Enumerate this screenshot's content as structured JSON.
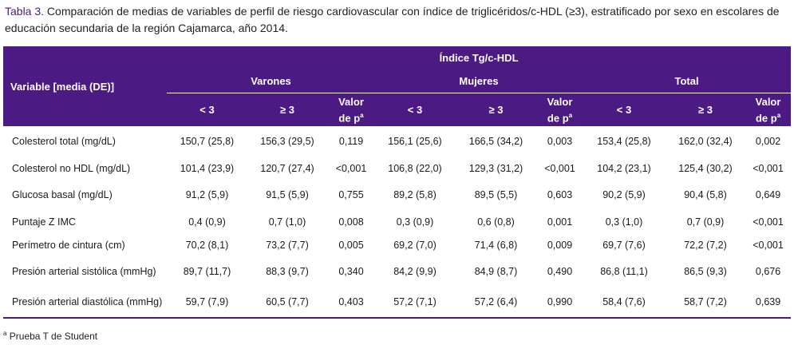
{
  "caption": {
    "label": "Tabla 3.",
    "text": " Comparación de medias de variables de perfil de riesgo cardiovascular con índice de triglicéridos/c-HDL (≥3), estratificado por sexo en escolares de educación secundaria de la región Cajamarca, año 2014."
  },
  "header": {
    "variable": "Variable [media (DE)]",
    "index": "Índice Tg/c-HDL",
    "groups": [
      "Varones",
      "Mujeres",
      "Total"
    ],
    "lt": "< 3",
    "ge": "≥ 3",
    "valor": "Valor",
    "dep": "de p",
    "sup": "a"
  },
  "rows": [
    {
      "variable": "Colesterol total (mg/dL)",
      "values": [
        "150,7 (25,8)",
        "156,3 (29,5)",
        "0,119",
        "156,1 (25,6)",
        "166,5 (34,2)",
        "0,003",
        "153,4 (25,8)",
        "162,0 (32,4)",
        "0,002"
      ]
    },
    {
      "variable": "Colesterol no HDL (mg/dL)",
      "values": [
        "101,4 (23,9)",
        "120,7 (27,4)",
        "<0,001",
        "106,8 (22,0)",
        "129,3 (31,2)",
        "<0,001",
        "104,2 (23,1)",
        "125,4 (30,2)",
        "<0,001"
      ]
    },
    {
      "variable": "Glucosa basal (mg/dL)",
      "values": [
        "91,2 (5,9)",
        "91,5 (5,9)",
        "0,755",
        "89,2 (5,8)",
        "89,5 (5,5)",
        "0,603",
        "90,2 (5,9)",
        "90,4 (5,8)",
        "0,649"
      ]
    },
    {
      "variable": "Puntaje Z IMC",
      "values": [
        "0,4 (0,9)",
        "0,7 (1,0)",
        "0,008",
        "0,3 (0,9)",
        "0,6 (0,8)",
        "0,001",
        "0,3 (1,0)",
        "0,7 (0,9)",
        "<0,001"
      ]
    },
    {
      "variable": "Perímetro de cintura (cm)",
      "values": [
        "70,2 (8,1)",
        "73,2 (7,7)",
        "0,005",
        "69,2 (7,0)",
        "71,4 (6,8)",
        "0,009",
        "69,7 (7,6)",
        "72,2 (7,2)",
        "<0,001"
      ]
    },
    {
      "variable": "Presión arterial sistólica (mmHg)",
      "values": [
        "89,7 (11,7)",
        "88,3 (9,7)",
        "0,340",
        "84,2 (9,9)",
        "84,9 (8,7)",
        "0,490",
        "86,8 (11,1)",
        "86,5 (9,3)",
        "0,676"
      ]
    },
    {
      "variable": "Presión arterial diastólica (mmHg)",
      "values": [
        "59,7 (7,9)",
        "60,5 (7,7)",
        "0,403",
        "57,2 (7,1)",
        "57,2 (6,4)",
        "0,990",
        "58,4 (7,6)",
        "58,7 (7,2)",
        "0,639"
      ]
    }
  ],
  "footnote": {
    "sup": "a",
    "text": " Prueba T de Student"
  }
}
